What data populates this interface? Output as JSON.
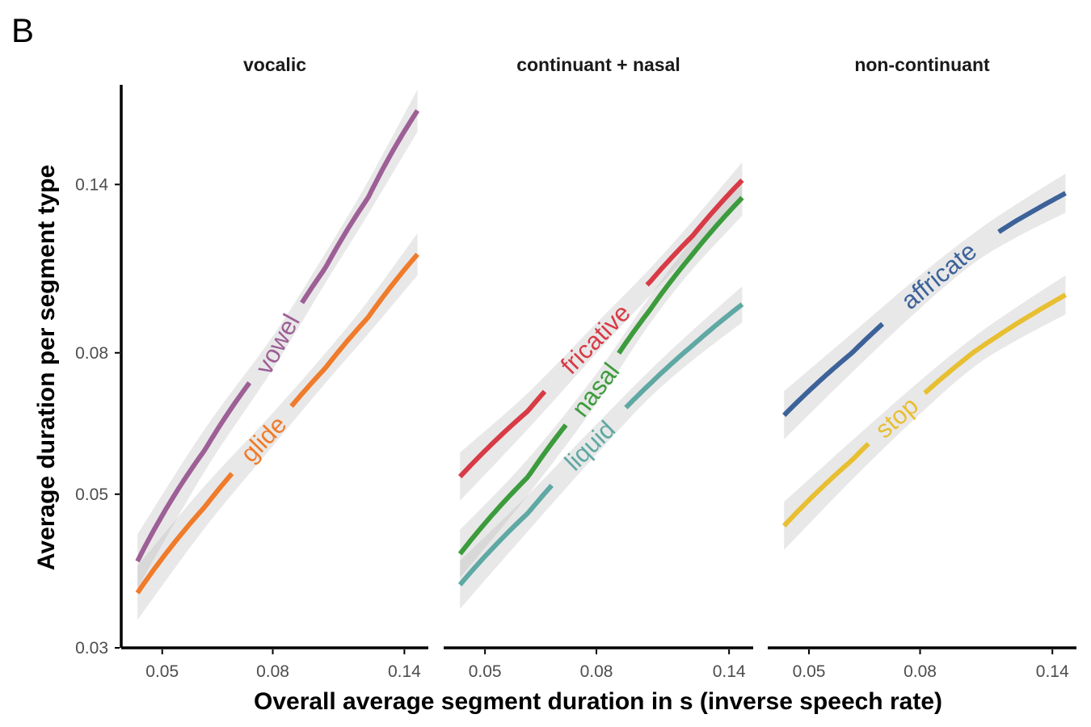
{
  "figure_tag": "B",
  "chart_data": {
    "type": "line",
    "xlabel": "Overall average segment duration in s (inverse speech rate)",
    "ylabel": "Average duration per segment type",
    "x_scale": "log",
    "y_scale": "log",
    "xlim": [
      0.042,
      0.155
    ],
    "ylim": [
      0.03,
      0.195
    ],
    "x_ticks": [
      0.05,
      0.08,
      0.14
    ],
    "x_tick_labels": [
      "0.05",
      "0.08",
      "0.14"
    ],
    "y_ticks": [
      0.03,
      0.05,
      0.08,
      0.14
    ],
    "y_tick_labels": [
      "0.03",
      "0.05",
      "0.08",
      "0.14"
    ],
    "ribbon": "95% confidence band (grey)",
    "grid": false,
    "legend": "direct labels on lines",
    "panels": [
      {
        "title": "vocalic",
        "series": [
          {
            "name": "vowel",
            "color": "#9d5f96",
            "x": [
              0.045,
              0.06,
              0.08,
              0.1,
              0.12,
              0.148
            ],
            "y": [
              0.04,
              0.058,
              0.08,
              0.106,
              0.134,
              0.179
            ],
            "band_halfwidth_log": [
              0.09,
              0.07,
              0.055,
              0.05,
              0.055,
              0.07
            ]
          },
          {
            "name": "glide",
            "color": "#f07b2a",
            "x": [
              0.045,
              0.06,
              0.08,
              0.1,
              0.12,
              0.148
            ],
            "y": [
              0.036,
              0.048,
              0.062,
              0.076,
              0.09,
              0.111
            ],
            "band_halfwidth_log": [
              0.09,
              0.07,
              0.055,
              0.05,
              0.055,
              0.07
            ]
          }
        ]
      },
      {
        "title": "continuant + nasal",
        "series": [
          {
            "name": "fricative",
            "color": "#d83b46",
            "x": [
              0.045,
              0.06,
              0.08,
              0.1,
              0.12,
              0.148
            ],
            "y": [
              0.053,
              0.066,
              0.084,
              0.101,
              0.118,
              0.142
            ],
            "band_halfwidth_log": [
              0.08,
              0.06,
              0.05,
              0.045,
              0.05,
              0.06
            ]
          },
          {
            "name": "nasal",
            "color": "#3c9b3c",
            "x": [
              0.045,
              0.06,
              0.08,
              0.1,
              0.12,
              0.148
            ],
            "y": [
              0.041,
              0.053,
              0.071,
              0.092,
              0.111,
              0.134
            ],
            "band_halfwidth_log": [
              0.08,
              0.06,
              0.05,
              0.045,
              0.05,
              0.06
            ]
          },
          {
            "name": "liquid",
            "color": "#5fa8a3",
            "x": [
              0.045,
              0.06,
              0.08,
              0.1,
              0.12,
              0.148
            ],
            "y": [
              0.037,
              0.047,
              0.06,
              0.072,
              0.082,
              0.094
            ],
            "band_halfwidth_log": [
              0.08,
              0.06,
              0.05,
              0.045,
              0.05,
              0.06
            ]
          }
        ]
      },
      {
        "title": "non-continuant",
        "series": [
          {
            "name": "affricate",
            "color": "#3c6299",
            "x": [
              0.045,
              0.06,
              0.08,
              0.1,
              0.12,
              0.148
            ],
            "y": [
              0.065,
              0.08,
              0.098,
              0.113,
              0.124,
              0.136
            ],
            "band_halfwidth_log": [
              0.08,
              0.065,
              0.055,
              0.05,
              0.055,
              0.065
            ]
          },
          {
            "name": "stop",
            "color": "#e8bf31",
            "x": [
              0.045,
              0.06,
              0.08,
              0.1,
              0.12,
              0.148
            ],
            "y": [
              0.045,
              0.056,
              0.069,
              0.08,
              0.088,
              0.097
            ],
            "band_halfwidth_log": [
              0.08,
              0.065,
              0.055,
              0.05,
              0.055,
              0.065
            ]
          }
        ]
      }
    ]
  }
}
